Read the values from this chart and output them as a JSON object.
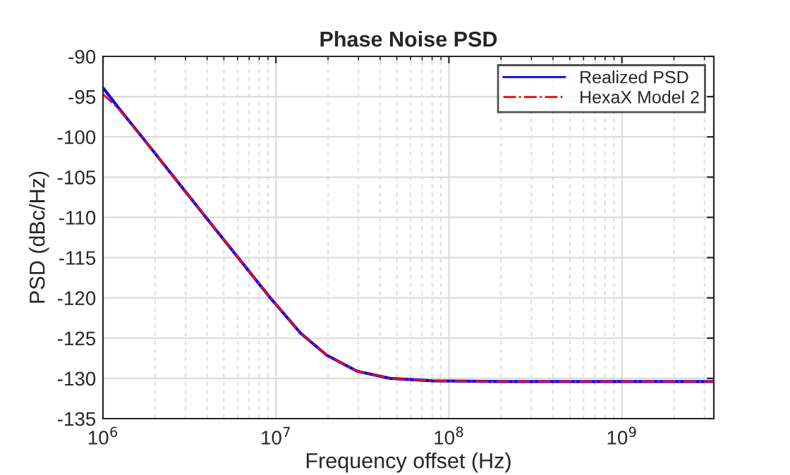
{
  "chart_data": {
    "type": "line",
    "title": "Phase Noise PSD",
    "xlabel": "Frequency offset (Hz)",
    "ylabel": "PSD (dBc/Hz)",
    "log": "x",
    "xlim": [
      1000000,
      3400000000
    ],
    "xticks": [
      {
        "value": 1000000,
        "label": "10$^{6}$"
      },
      {
        "value": 10000000,
        "label": "10$^{7}$"
      },
      {
        "value": 100000000,
        "label": "10$^{8}$"
      },
      {
        "value": 1000000000,
        "label": "10$^{9}$"
      }
    ],
    "ylim": [
      -135,
      -90
    ],
    "yticks": [
      -135,
      -130,
      -125,
      -120,
      -115,
      -110,
      -105,
      -100,
      -95,
      -90
    ],
    "grid": true,
    "legend": "top right",
    "series": [
      {
        "name": "Realized PSD",
        "color": "#0000ff",
        "line_style": "solid",
        "x": [
          1000000,
          1230000,
          1680000,
          3940000,
          9270000,
          13900000,
          19600000,
          29400000,
          45700000,
          80000000,
          200000000,
          1000000000,
          3400000000
        ],
        "values": [
          -93.9,
          -96.4,
          -100,
          -110,
          -120,
          -124.4,
          -127.1,
          -129.1,
          -130.0,
          -130.3,
          -130.4,
          -130.4,
          -130.4
        ]
      },
      {
        "name": "HexaX Model 2",
        "color": "#ff0000",
        "line_style": "dashdot",
        "x": [
          1000000,
          1230000,
          1680000,
          3940000,
          9270000,
          13900000,
          19600000,
          29400000,
          45700000,
          80000000,
          200000000,
          1000000000,
          3400000000
        ],
        "values": [
          -94.7,
          -96.5,
          -100,
          -110,
          -120,
          -124.4,
          -127.1,
          -129.1,
          -130.0,
          -130.3,
          -130.4,
          -130.4,
          -130.4
        ]
      }
    ]
  }
}
